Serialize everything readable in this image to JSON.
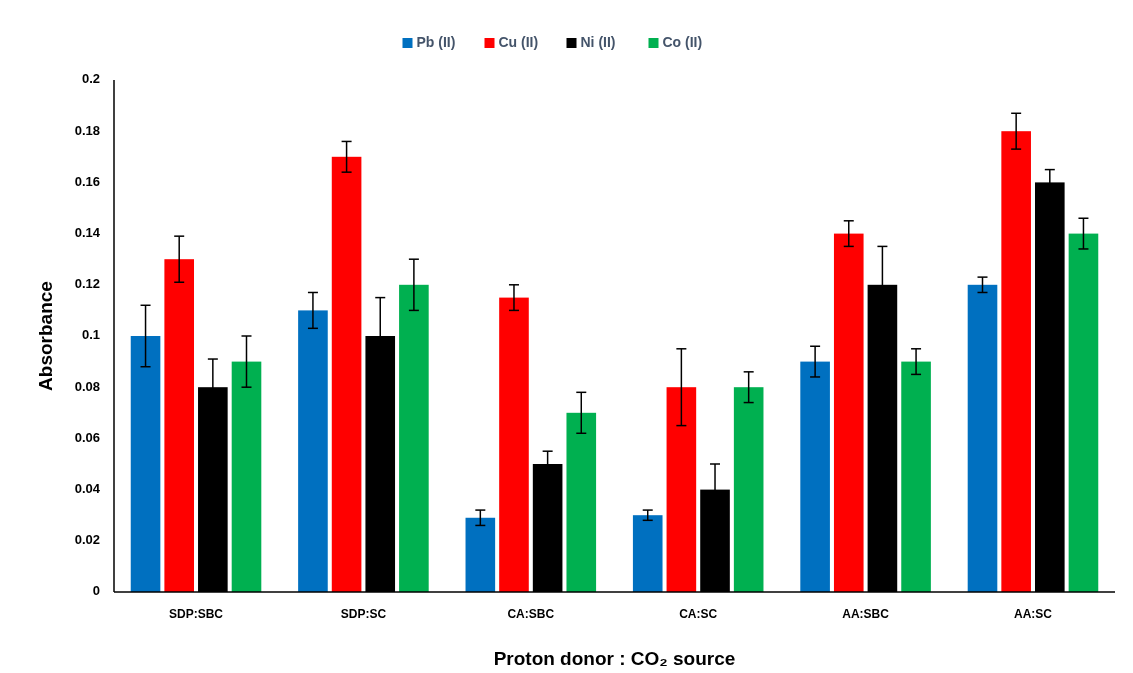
{
  "chart_data": {
    "type": "bar",
    "xlabel": "Proton donor : CO₂ source",
    "ylabel": "Absorbance",
    "categories": [
      "SDP:SBC",
      "SDP:SC",
      "CA:SBC",
      "CA:SC",
      "AA:SBC",
      "AA:SC"
    ],
    "series": [
      {
        "name": "Pb (II)",
        "color": "#0070c0",
        "values": [
          0.1,
          0.11,
          0.029,
          0.03,
          0.09,
          0.12
        ],
        "errors": [
          0.012,
          0.007,
          0.003,
          0.002,
          0.006,
          0.003
        ]
      },
      {
        "name": "Cu (II)",
        "color": "#ff0000",
        "values": [
          0.13,
          0.17,
          0.115,
          0.08,
          0.14,
          0.18
        ],
        "errors": [
          0.009,
          0.006,
          0.005,
          0.015,
          0.005,
          0.007
        ]
      },
      {
        "name": "Ni (II)",
        "color": "#000000",
        "values": [
          0.08,
          0.1,
          0.05,
          0.04,
          0.12,
          0.16
        ],
        "errors": [
          0.011,
          0.015,
          0.005,
          0.01,
          0.015,
          0.005
        ]
      },
      {
        "name": "Co (II)",
        "color": "#00b050",
        "values": [
          0.09,
          0.12,
          0.07,
          0.08,
          0.09,
          0.14
        ],
        "errors": [
          0.01,
          0.01,
          0.008,
          0.006,
          0.005,
          0.006
        ]
      }
    ],
    "ylim": [
      0,
      0.2
    ],
    "yticks": [
      0,
      0.02,
      0.04,
      0.06,
      0.08,
      0.1,
      0.12,
      0.14,
      0.16,
      0.18,
      0.2
    ],
    "legend": "top"
  }
}
